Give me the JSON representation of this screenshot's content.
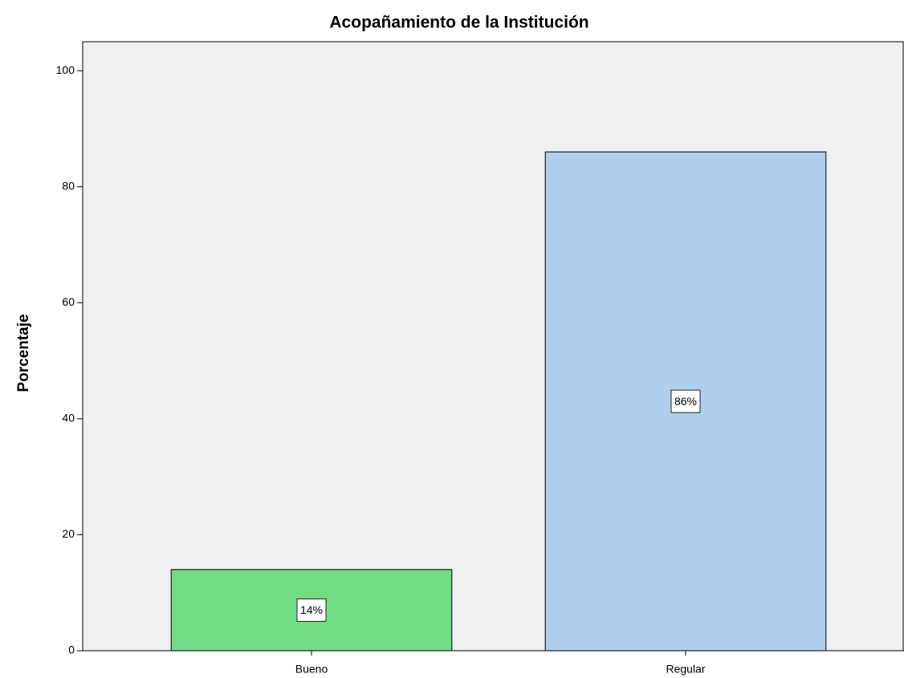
{
  "chart_data": {
    "type": "bar",
    "title": "Acopañamiento de la Institución",
    "ylabel": "Porcentaje",
    "categories": [
      "Bueno",
      "Regular"
    ],
    "values": [
      14,
      86
    ],
    "value_labels": [
      "14%",
      "86%"
    ],
    "colors": [
      "#70dc84",
      "#aecfee"
    ],
    "ylim": [
      0,
      105
    ],
    "yticks": [
      0,
      20,
      40,
      60,
      80,
      100
    ]
  }
}
